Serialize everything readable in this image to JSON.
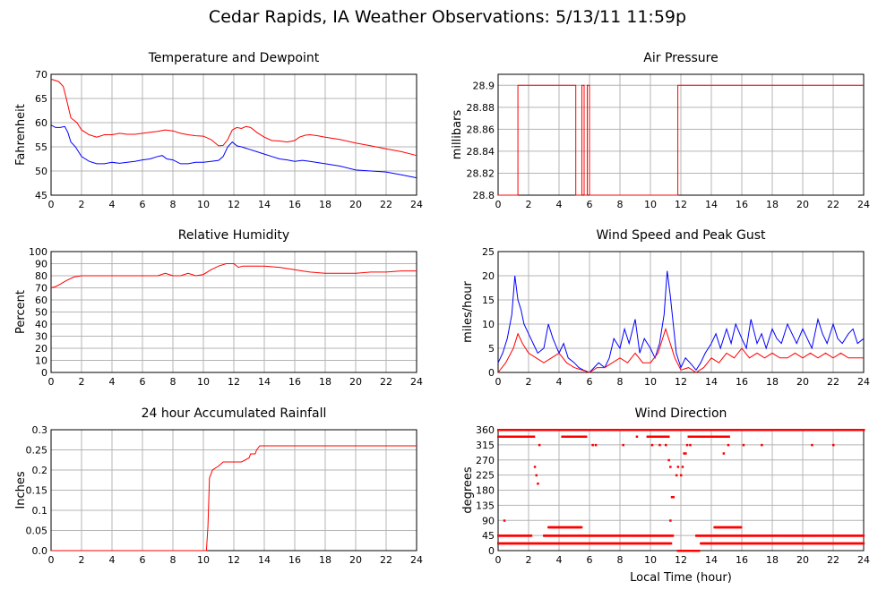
{
  "page_title": "Cedar Rapids, IA Weather Observations: 5/13/11 11:59p",
  "x_axis_label": "Local Time (hour)",
  "colors": {
    "red": "#ff0000",
    "blue": "#0000ff"
  },
  "chart_data": [
    {
      "id": "temp",
      "type": "line",
      "title": "Temperature and Dewpoint",
      "ylabel": "Fahrenheit",
      "xlim": [
        0,
        24
      ],
      "ylim": [
        45,
        70
      ],
      "xticks": [
        0,
        2,
        4,
        6,
        8,
        10,
        12,
        14,
        16,
        18,
        20,
        22,
        24
      ],
      "yticks": [
        45,
        50,
        55,
        60,
        65,
        70
      ],
      "series": [
        {
          "color": "#ff0000",
          "x": [
            0,
            0.5,
            0.8,
            1,
            1.3,
            1.7,
            2,
            2.5,
            3,
            3.5,
            4,
            4.5,
            5,
            5.5,
            6,
            6.5,
            7,
            7.5,
            8,
            8.5,
            9,
            9.5,
            10,
            10.5,
            11,
            11.3,
            11.6,
            11.9,
            12.2,
            12.5,
            12.8,
            13.1,
            13.5,
            14,
            14.5,
            15,
            15.5,
            16,
            16.3,
            16.7,
            17,
            17.5,
            18,
            19,
            20,
            21,
            22,
            23,
            24
          ],
          "y": [
            69,
            68.5,
            67.5,
            65,
            61,
            60,
            58.5,
            57.5,
            57,
            57.5,
            57.5,
            57.8,
            57.6,
            57.6,
            57.8,
            58,
            58.2,
            58.5,
            58.3,
            57.8,
            57.5,
            57.3,
            57.2,
            56.5,
            55.2,
            55.3,
            56.5,
            58.5,
            59,
            58.8,
            59.2,
            59,
            58,
            57,
            56.3,
            56.2,
            56,
            56.3,
            57,
            57.4,
            57.5,
            57.3,
            57,
            56.5,
            55.8,
            55.2,
            54.6,
            54,
            53.2
          ]
        },
        {
          "color": "#0000ff",
          "x": [
            0,
            0.3,
            0.6,
            0.9,
            1.1,
            1.3,
            1.6,
            2,
            2.5,
            3,
            3.5,
            4,
            4.5,
            5,
            5.5,
            6,
            6.5,
            7,
            7.3,
            7.6,
            8,
            8.5,
            9,
            9.5,
            10,
            10.5,
            11,
            11.3,
            11.6,
            11.9,
            12.2,
            12.5,
            13,
            13.5,
            14,
            14.5,
            15,
            15.5,
            16,
            16.5,
            17,
            18,
            19,
            20,
            21,
            22,
            23,
            24
          ],
          "y": [
            59.5,
            59,
            59,
            59.2,
            58,
            56,
            55,
            53,
            52,
            51.5,
            51.5,
            51.8,
            51.6,
            51.8,
            52,
            52.3,
            52.5,
            53,
            53.2,
            52.5,
            52.3,
            51.5,
            51.5,
            51.8,
            51.8,
            52,
            52.2,
            53,
            55,
            56,
            55.2,
            55,
            54.5,
            54,
            53.5,
            53,
            52.5,
            52.3,
            52,
            52.2,
            52,
            51.5,
            51,
            50.2,
            50,
            49.8,
            49.2,
            48.6
          ]
        }
      ]
    },
    {
      "id": "press",
      "type": "line",
      "title": "Air Pressure",
      "ylabel": "millibars",
      "xlim": [
        0,
        24
      ],
      "ylim": [
        28.8,
        28.91
      ],
      "xticks": [
        0,
        2,
        4,
        6,
        8,
        10,
        12,
        14,
        16,
        18,
        20,
        22,
        24
      ],
      "yticks": [
        28.8,
        28.82,
        28.84,
        28.86,
        28.88,
        28.9
      ],
      "ytick_labels": [
        "28.8",
        "28.82",
        "28.84",
        "28.86",
        "28.88",
        "28.9"
      ],
      "series": [
        {
          "color": "#ff0000",
          "x": [
            0,
            1.3,
            1.3,
            5.1,
            5.1,
            5.5,
            5.5,
            5.65,
            5.65,
            5.85,
            5.85,
            6.0,
            6.0,
            10.95,
            10.95,
            11.8,
            11.8,
            24
          ],
          "y": [
            28.8,
            28.8,
            28.9,
            28.9,
            28.8,
            28.8,
            28.9,
            28.9,
            28.8,
            28.8,
            28.9,
            28.9,
            28.8,
            28.8,
            28.8,
            28.8,
            28.9,
            28.9
          ]
        }
      ]
    },
    {
      "id": "rh",
      "type": "line",
      "title": "Relative Humidity",
      "ylabel": "Percent",
      "xlim": [
        0,
        24
      ],
      "ylim": [
        0,
        100
      ],
      "xticks": [
        0,
        2,
        4,
        6,
        8,
        10,
        12,
        14,
        16,
        18,
        20,
        22,
        24
      ],
      "yticks": [
        0,
        10,
        20,
        30,
        40,
        50,
        60,
        70,
        80,
        90,
        100
      ],
      "series": [
        {
          "color": "#ff0000",
          "x": [
            0,
            0.3,
            0.6,
            1,
            1.5,
            2,
            3,
            4,
            5,
            6,
            7,
            7.5,
            8,
            8.5,
            9,
            9.5,
            10,
            10.5,
            11,
            11.5,
            12,
            12.3,
            12.6,
            13,
            14,
            15,
            16,
            16.5,
            17,
            18,
            19,
            20,
            21,
            22,
            23,
            24
          ],
          "y": [
            70,
            71,
            73,
            76,
            79,
            80,
            80,
            80,
            80,
            80,
            80,
            82,
            80,
            80,
            82,
            80,
            81,
            85,
            88,
            90,
            90,
            87,
            88,
            88,
            88,
            87,
            85,
            84,
            83,
            82,
            82,
            82,
            83,
            83,
            84,
            84
          ]
        }
      ]
    },
    {
      "id": "wind",
      "type": "line",
      "title": "Wind Speed and Peak Gust",
      "ylabel": "miles/hour",
      "xlim": [
        0,
        24
      ],
      "ylim": [
        0,
        25
      ],
      "xticks": [
        0,
        2,
        4,
        6,
        8,
        10,
        12,
        14,
        16,
        18,
        20,
        22,
        24
      ],
      "yticks": [
        0,
        5,
        10,
        15,
        20,
        25
      ],
      "series": [
        {
          "color": "#0000ff",
          "x": [
            0,
            0.3,
            0.6,
            0.9,
            1.1,
            1.3,
            1.5,
            1.7,
            2,
            2.3,
            2.6,
            3,
            3.3,
            3.6,
            4,
            4.3,
            4.6,
            5,
            5.3,
            5.6,
            6,
            6.3,
            6.6,
            7,
            7.3,
            7.6,
            8,
            8.3,
            8.6,
            9,
            9.3,
            9.6,
            10,
            10.3,
            10.6,
            10.9,
            11.1,
            11.3,
            11.5,
            11.7,
            12,
            12.3,
            12.6,
            13,
            13.3,
            13.6,
            14,
            14.3,
            14.6,
            15,
            15.3,
            15.6,
            16,
            16.3,
            16.6,
            17,
            17.3,
            17.6,
            18,
            18.3,
            18.6,
            19,
            19.3,
            19.6,
            20,
            20.3,
            20.6,
            21,
            21.3,
            21.6,
            22,
            22.3,
            22.6,
            23,
            23.3,
            23.6,
            24
          ],
          "y": [
            2,
            4,
            7,
            12,
            20,
            15,
            13,
            10,
            8,
            6,
            4,
            5,
            10,
            7,
            4,
            6,
            3,
            2,
            1,
            0.5,
            0,
            1,
            2,
            1,
            3,
            7,
            5,
            9,
            6,
            11,
            4,
            7,
            5,
            3,
            6,
            12,
            21,
            16,
            10,
            4,
            1,
            3,
            2,
            0.5,
            2,
            4,
            6,
            8,
            5,
            9,
            6,
            10,
            7,
            5,
            11,
            6,
            8,
            5,
            9,
            7,
            6,
            10,
            8,
            6,
            9,
            7,
            5,
            11,
            8,
            6,
            10,
            7,
            6,
            8,
            9,
            6,
            7
          ]
        },
        {
          "color": "#ff0000",
          "x": [
            0,
            0.5,
            1,
            1.3,
            1.6,
            2,
            2.5,
            3,
            3.5,
            4,
            4.5,
            5,
            5.5,
            6,
            6.5,
            7,
            7.5,
            8,
            8.5,
            9,
            9.5,
            10,
            10.5,
            11,
            11.3,
            11.6,
            12,
            12.5,
            13,
            13.5,
            14,
            14.5,
            15,
            15.5,
            16,
            16.5,
            17,
            17.5,
            18,
            18.5,
            19,
            19.5,
            20,
            20.5,
            21,
            21.5,
            22,
            22.5,
            23,
            23.5,
            24
          ],
          "y": [
            0,
            2,
            5,
            8,
            6,
            4,
            3,
            2,
            3,
            4,
            2,
            1,
            0.5,
            0,
            1,
            1,
            2,
            3,
            2,
            4,
            2,
            2,
            4,
            9,
            6,
            3,
            0.5,
            1,
            0,
            1,
            3,
            2,
            4,
            3,
            5,
            3,
            4,
            3,
            4,
            3,
            3,
            4,
            3,
            4,
            3,
            4,
            3,
            4,
            3,
            3,
            3
          ]
        }
      ]
    },
    {
      "id": "rain",
      "type": "line",
      "title": "24 hour Accumulated Rainfall",
      "ylabel": "Inches",
      "xlim": [
        0,
        24
      ],
      "ylim": [
        0,
        0.3
      ],
      "xticks": [
        0,
        2,
        4,
        6,
        8,
        10,
        12,
        14,
        16,
        18,
        20,
        22,
        24
      ],
      "yticks": [
        0,
        0.05,
        0.1,
        0.15,
        0.2,
        0.25,
        0.3
      ],
      "ytick_labels": [
        "0.0",
        "0.05",
        "0.1",
        "0.15",
        "0.2",
        "0.25",
        "0.3"
      ],
      "series": [
        {
          "color": "#ff0000",
          "x": [
            0,
            10.2,
            10.3,
            10.4,
            10.6,
            11.0,
            11.3,
            11.5,
            12,
            12.5,
            13.0,
            13.1,
            13.4,
            13.5,
            13.7,
            24
          ],
          "y": [
            0,
            0,
            0.06,
            0.18,
            0.2,
            0.21,
            0.22,
            0.22,
            0.22,
            0.22,
            0.23,
            0.24,
            0.24,
            0.25,
            0.26,
            0.26
          ]
        }
      ]
    },
    {
      "id": "dir",
      "type": "scatter",
      "title": "Wind Direction",
      "ylabel": "degrees",
      "xlabel": "Local Time (hour)",
      "xlim": [
        0,
        24
      ],
      "ylim": [
        0,
        360
      ],
      "xticks": [
        0,
        2,
        4,
        6,
        8,
        10,
        12,
        14,
        16,
        18,
        20,
        22,
        24
      ],
      "yticks": [
        0,
        45,
        90,
        135,
        180,
        225,
        270,
        315,
        360
      ],
      "series": [
        {
          "color": "#ff0000",
          "bands": [
            {
              "y": 360,
              "x0": 0,
              "x1": 24
            },
            {
              "y": 340,
              "x0": 0,
              "x1": 2.4
            },
            {
              "y": 340,
              "x0": 4.2,
              "x1": 5.8
            },
            {
              "y": 340,
              "x0": 9.8,
              "x1": 11.2
            },
            {
              "y": 340,
              "x0": 12.5,
              "x1": 15.2
            },
            {
              "y": 45,
              "x0": 0,
              "x1": 2.2
            },
            {
              "y": 45,
              "x0": 3,
              "x1": 11.5
            },
            {
              "y": 45,
              "x0": 13,
              "x1": 24
            },
            {
              "y": 22,
              "x0": 0,
              "x1": 11.4
            },
            {
              "y": 22,
              "x0": 13.3,
              "x1": 24
            },
            {
              "y": 70,
              "x0": 3.3,
              "x1": 5.5
            },
            {
              "y": 70,
              "x0": 14.2,
              "x1": 16
            },
            {
              "y": 0,
              "x0": 11.8,
              "x1": 13.2
            }
          ],
          "points": [
            [
              2.4,
              250
            ],
            [
              2.5,
              225
            ],
            [
              2.6,
              200
            ],
            [
              2.7,
              315
            ],
            [
              11.2,
              270
            ],
            [
              11.3,
              250
            ],
            [
              11.4,
              160
            ],
            [
              11.5,
              160
            ],
            [
              11.7,
              225
            ],
            [
              11.8,
              250
            ],
            [
              12.0,
              225
            ],
            [
              12.1,
              250
            ],
            [
              12.2,
              290
            ],
            [
              12.3,
              290
            ],
            [
              12.4,
              315
            ],
            [
              12.6,
              315
            ],
            [
              14.8,
              290
            ],
            [
              15.1,
              315
            ],
            [
              17.3,
              315
            ],
            [
              20.6,
              315
            ],
            [
              22,
              315
            ],
            [
              0.4,
              90
            ],
            [
              11.3,
              90
            ],
            [
              6.2,
              315
            ],
            [
              6.4,
              315
            ],
            [
              8.2,
              315
            ],
            [
              9.1,
              340
            ],
            [
              10.1,
              315
            ],
            [
              10.6,
              315
            ],
            [
              11.0,
              315
            ],
            [
              16.1,
              315
            ]
          ]
        }
      ]
    }
  ]
}
